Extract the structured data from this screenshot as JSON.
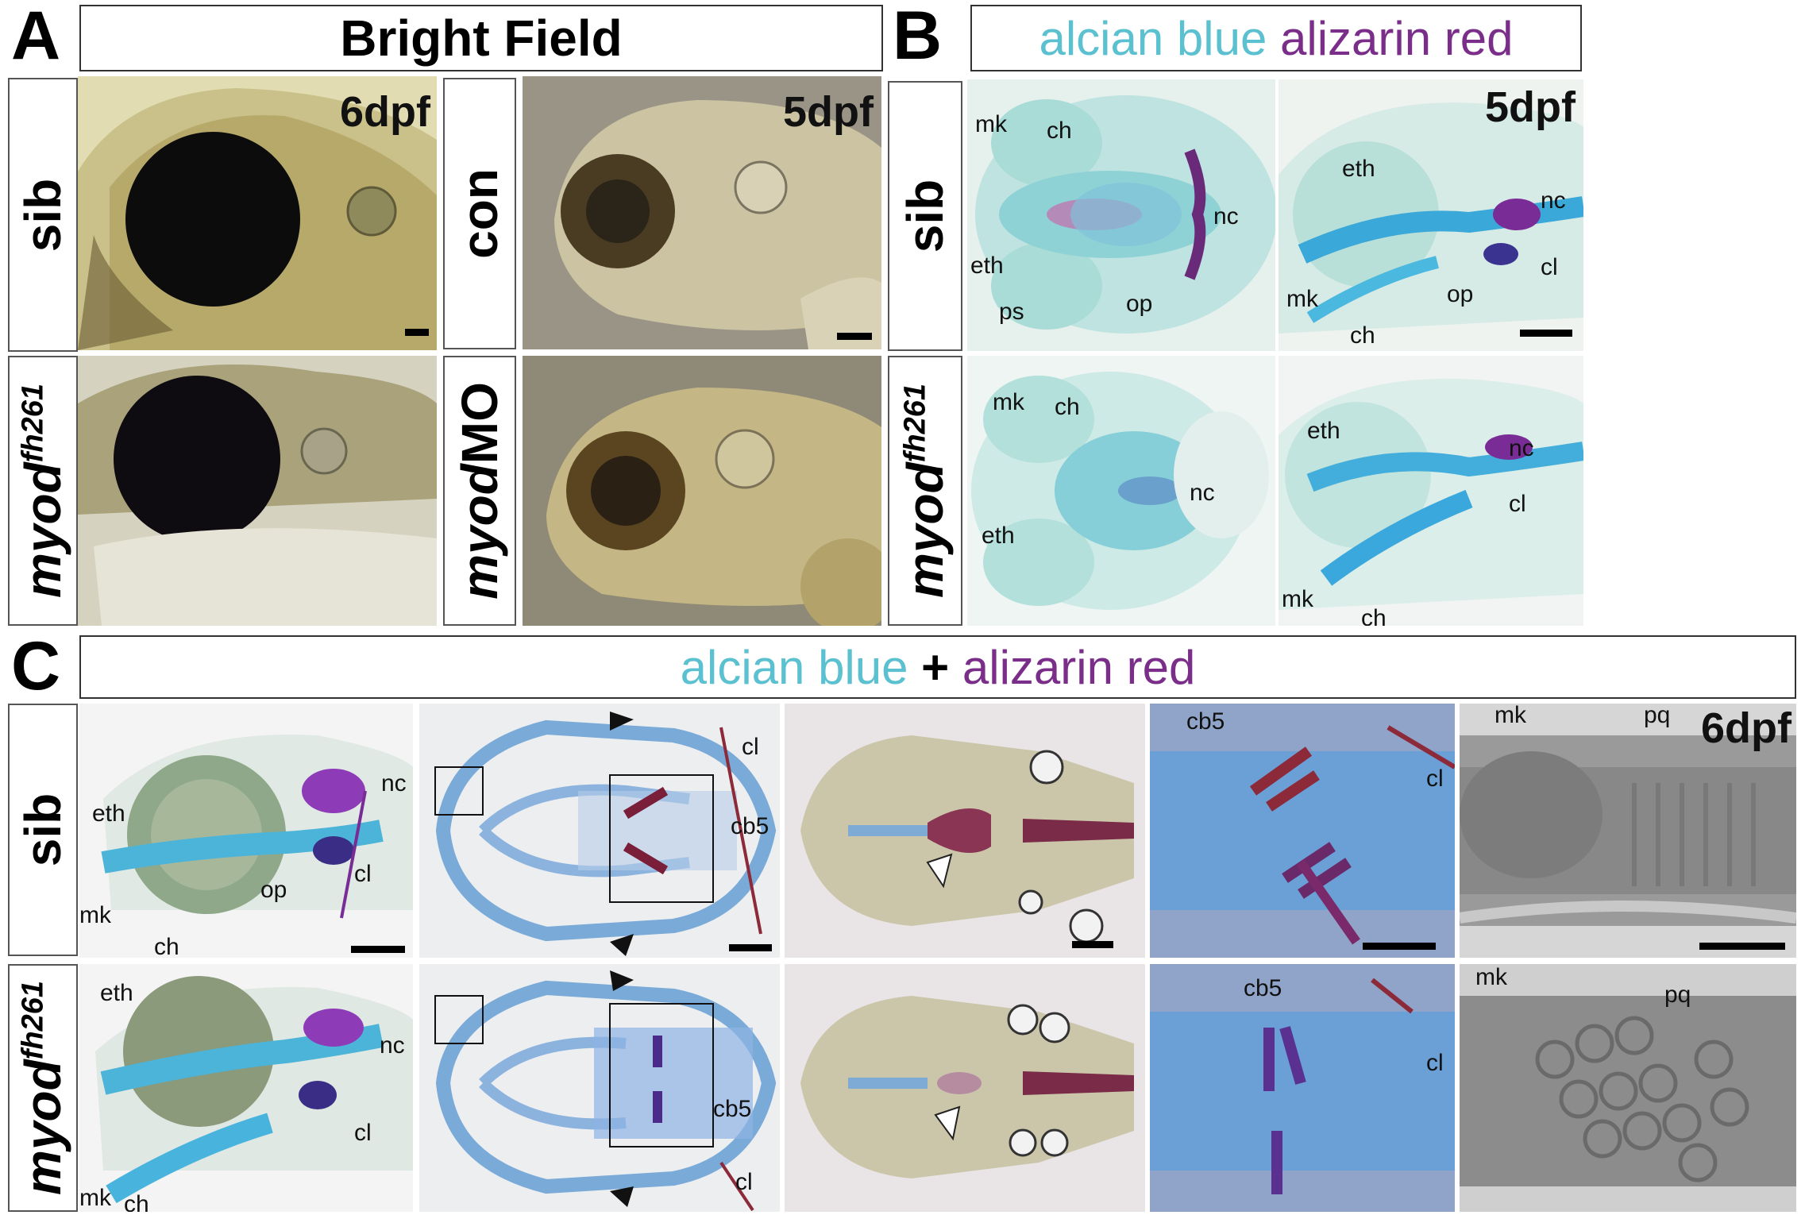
{
  "panels": {
    "A": {
      "letter": "A",
      "title": "Bright Field",
      "stage_left": "6dpf",
      "stage_right": "5dpf",
      "rows": [
        "sib",
        "myod",
        "fh261"
      ],
      "control_label": "con",
      "mo_label_italic": "myod",
      "mo_label_rest": "MO"
    },
    "B": {
      "letter": "B",
      "title_part1": "alcian blue",
      "title_part2": "alizarin red",
      "stage": "5dpf",
      "labels_top_left": [
        "mk",
        "ch",
        "nc",
        "eth",
        "ps",
        "op"
      ],
      "labels_top_right": [
        "eth",
        "nc",
        "cl",
        "mk",
        "op",
        "ch"
      ],
      "labels_bottom_left": [
        "mk",
        "ch",
        "nc",
        "eth"
      ],
      "labels_bottom_right": [
        "eth",
        "nc",
        "cl",
        "mk",
        "ch"
      ]
    },
    "C": {
      "letter": "C",
      "title_part1": "alcian blue",
      "title_plus": "+",
      "title_part2": "alizarin red",
      "stage": "6dpf",
      "labels": {
        "eth": "eth",
        "nc": "nc",
        "cl": "cl",
        "op": "op",
        "mk": "mk",
        "ch": "ch",
        "cb5": "cb5",
        "pq": "pq"
      }
    }
  },
  "colors": {
    "alcian": "#5bc0d0",
    "alizarin": "#7a2e8a"
  }
}
